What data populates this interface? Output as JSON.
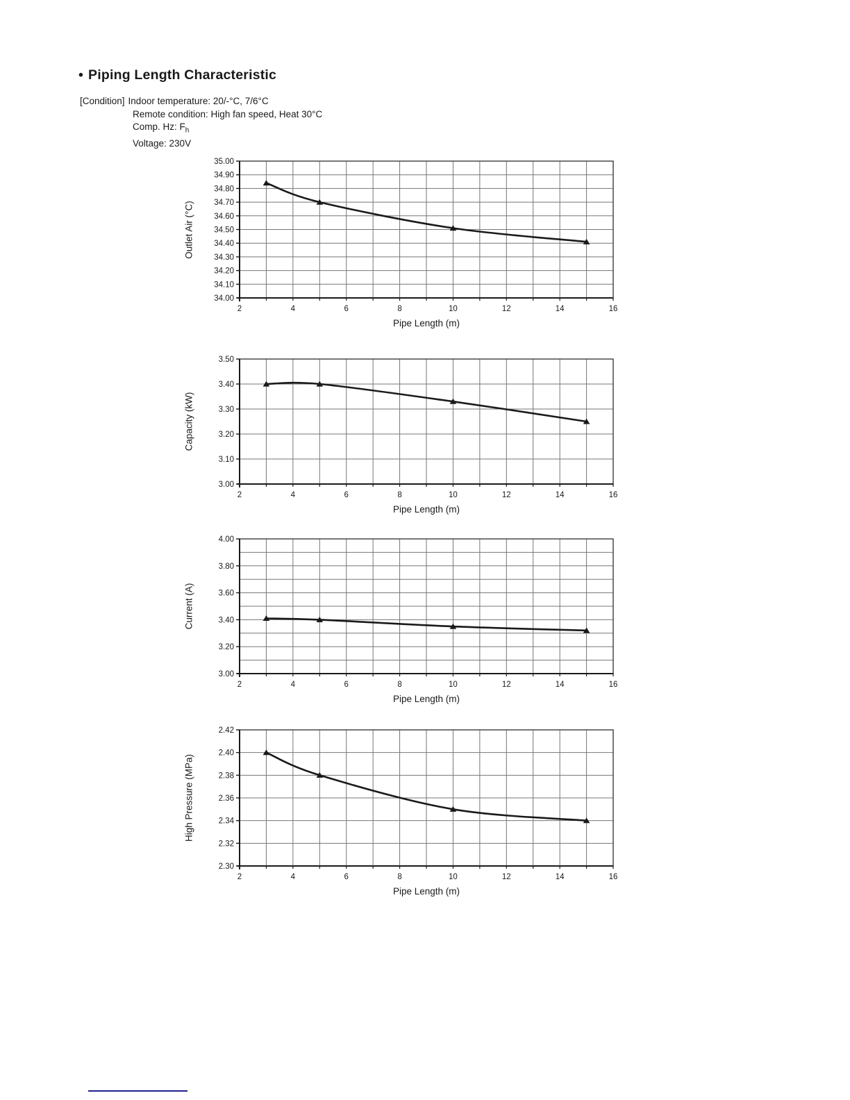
{
  "header": {
    "bullet": "•",
    "title": "Piping Length Characteristic"
  },
  "conditions": {
    "label": "[Condition]",
    "line1": "Indoor temperature: 20/-°C, 7/6°C",
    "line2": "Remote condition: High fan speed, Heat 30°C",
    "line3_prefix": "Comp. Hz: F",
    "line3_sub": "h",
    "line4": "Voltage: 230V"
  },
  "colors": {
    "ink": "#1a1a1a",
    "grid": "#757575",
    "border": "#3c3c3c",
    "footer_rule": "#1f1f8a"
  },
  "chart_data": [
    {
      "type": "line",
      "title": "",
      "xlabel": "Pipe Length (m)",
      "ylabel": "Outlet Air (°C)",
      "x": [
        3,
        5,
        10,
        15
      ],
      "values": [
        34.84,
        34.7,
        34.51,
        34.41
      ],
      "xlim": [
        2,
        16
      ],
      "ylim": [
        34.0,
        35.0
      ],
      "xticks": [
        2,
        4,
        6,
        8,
        10,
        12,
        14,
        16
      ],
      "xgrid_step": 1,
      "yticks": [
        "35.00",
        "34.90",
        "34.80",
        "34.70",
        "34.60",
        "34.50",
        "34.40",
        "34.30",
        "34.20",
        "34.10",
        "34.00"
      ],
      "ygrid_step": 0.1,
      "marker": "triangle",
      "grid": true,
      "legend": null
    },
    {
      "type": "line",
      "title": "",
      "xlabel": "Pipe Length (m)",
      "ylabel": "Capacity (kW)",
      "x": [
        3,
        5,
        10,
        15
      ],
      "values": [
        3.4,
        3.4,
        3.33,
        3.25
      ],
      "xlim": [
        2,
        16
      ],
      "ylim": [
        3.0,
        3.5
      ],
      "xticks": [
        2,
        4,
        6,
        8,
        10,
        12,
        14,
        16
      ],
      "xgrid_step": 1,
      "yticks": [
        "3.50",
        "3.40",
        "3.30",
        "3.20",
        "3.10",
        "3.00"
      ],
      "ygrid_step": 0.1,
      "marker": "triangle",
      "grid": true,
      "legend": null
    },
    {
      "type": "line",
      "title": "",
      "xlabel": "Pipe Length (m)",
      "ylabel": "Current (A)",
      "x": [
        3,
        5,
        10,
        15
      ],
      "values": [
        3.41,
        3.4,
        3.35,
        3.32
      ],
      "xlim": [
        2,
        16
      ],
      "ylim": [
        3.0,
        4.0
      ],
      "xticks": [
        2,
        4,
        6,
        8,
        10,
        12,
        14,
        16
      ],
      "xgrid_step": 1,
      "yticks": [
        "4.00",
        "3.80",
        "3.60",
        "3.40",
        "3.20",
        "3.00"
      ],
      "ygrid_step": 0.1,
      "marker": "triangle",
      "grid": true,
      "legend": null
    },
    {
      "type": "line",
      "title": "",
      "xlabel": "Pipe Length (m)",
      "ylabel": "High Pressure (MPa)",
      "x": [
        3,
        5,
        10,
        15
      ],
      "values": [
        2.4,
        2.38,
        2.35,
        2.34
      ],
      "xlim": [
        2,
        16
      ],
      "ylim": [
        2.3,
        2.42
      ],
      "xticks": [
        2,
        4,
        6,
        8,
        10,
        12,
        14,
        16
      ],
      "xgrid_step": 1,
      "yticks": [
        "2.42",
        "2.40",
        "2.38",
        "2.36",
        "2.34",
        "2.32",
        "2.30"
      ],
      "ygrid_step": 0.02,
      "marker": "triangle",
      "grid": true,
      "legend": null
    }
  ]
}
